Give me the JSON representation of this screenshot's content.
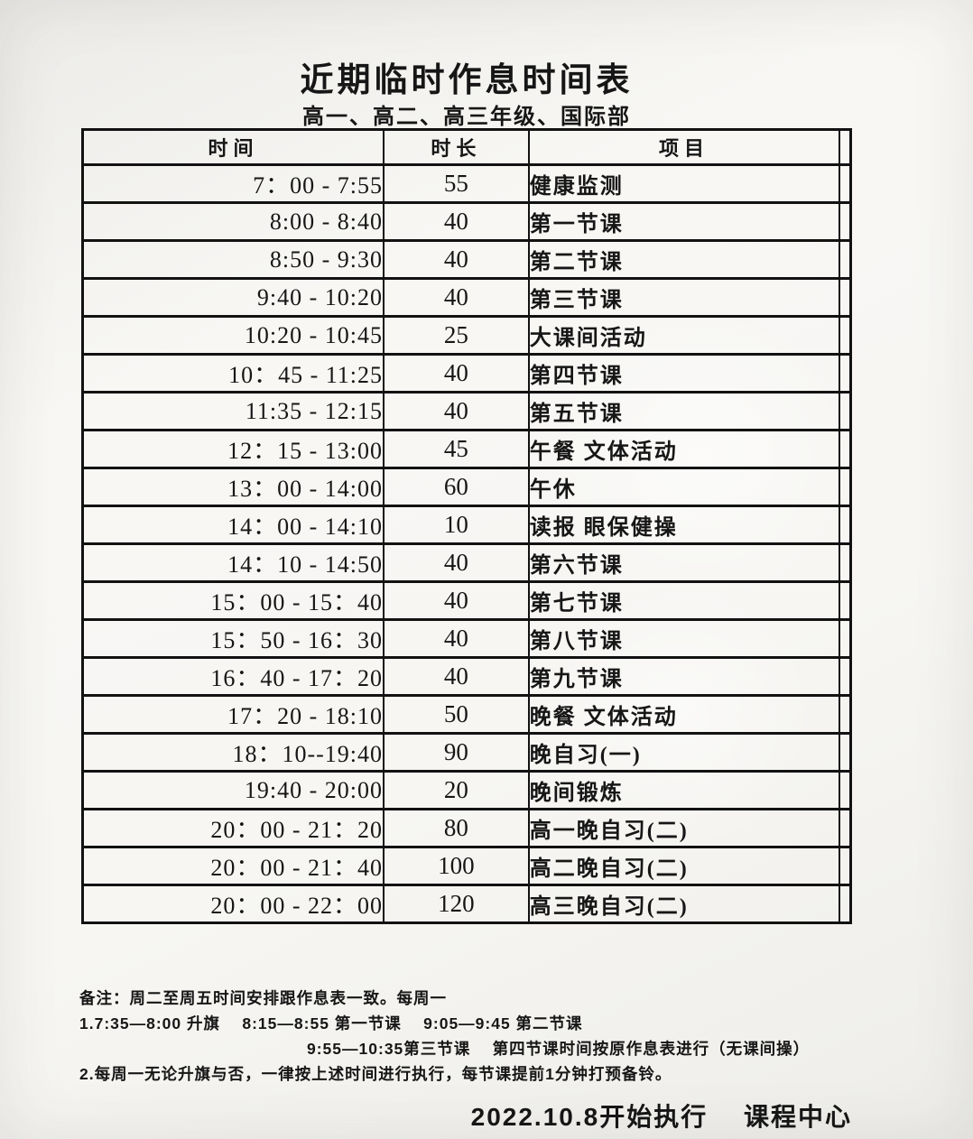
{
  "page": {
    "title": "近期临时作息时间表",
    "subtitle": "高一、高二、高三年级、国际部"
  },
  "table": {
    "headers": {
      "time": "时间",
      "duration": "时长",
      "item": "项目"
    },
    "rows": [
      {
        "time": "7：00 - 7:55",
        "duration": "55",
        "item": "健康监测"
      },
      {
        "time": "8:00 - 8:40",
        "duration": "40",
        "item": "第一节课"
      },
      {
        "time": "8:50 - 9:30",
        "duration": "40",
        "item": "第二节课"
      },
      {
        "time": "9:40 - 10:20",
        "duration": "40",
        "item": "第三节课"
      },
      {
        "time": "10:20 - 10:45",
        "duration": "25",
        "item": "大课间活动"
      },
      {
        "time": "10：45 - 11:25",
        "duration": "40",
        "item": "第四节课"
      },
      {
        "time": "11:35 - 12:15",
        "duration": "40",
        "item": "第五节课"
      },
      {
        "time": "12：15 - 13:00",
        "duration": "45",
        "item": "午餐 文体活动"
      },
      {
        "time": "13：00 - 14:00",
        "duration": "60",
        "item": "午休"
      },
      {
        "time": "14：00 - 14:10",
        "duration": "10",
        "item": "读报 眼保健操"
      },
      {
        "time": "14：10 - 14:50",
        "duration": "40",
        "item": "第六节课"
      },
      {
        "time": "15：00 - 15：40",
        "duration": "40",
        "item": "第七节课"
      },
      {
        "time": "15：50 - 16：30",
        "duration": "40",
        "item": "第八节课"
      },
      {
        "time": "16：40 - 17：20",
        "duration": "40",
        "item": "第九节课"
      },
      {
        "time": "17：20 - 18:10",
        "duration": "50",
        "item": "晚餐 文体活动"
      },
      {
        "time": "18：10--19:40",
        "duration": "90",
        "item": "晚自习(一)"
      },
      {
        "time": "19:40 - 20:00",
        "duration": "20",
        "item": "晚间锻炼"
      },
      {
        "time": "20：00 - 21：20",
        "duration": "80",
        "item": "高一晚自习(二)"
      },
      {
        "time": "20：00 - 21：40",
        "duration": "100",
        "item": "高二晚自习(二)"
      },
      {
        "time": "20：00 - 22：00",
        "duration": "120",
        "item": "高三晚自习(二)"
      }
    ]
  },
  "notes": {
    "heading": "备注：周二至周五时间安排跟作息表一致。每周一",
    "item1": "1.7:35—8:00 升旗　 8:15—8:55 第一节课　 9:05—9:45 第二节课",
    "item1_continued": "9:55—10:35第三节课　 第四节课时间按原作息表进行（无课间操）",
    "item2": "2.每周一无论升旗与否，一律按上述时间进行执行，每节课提前1分钟打预备铃。"
  },
  "footer": {
    "text": "2022.10.8开始执行　 课程中心"
  }
}
